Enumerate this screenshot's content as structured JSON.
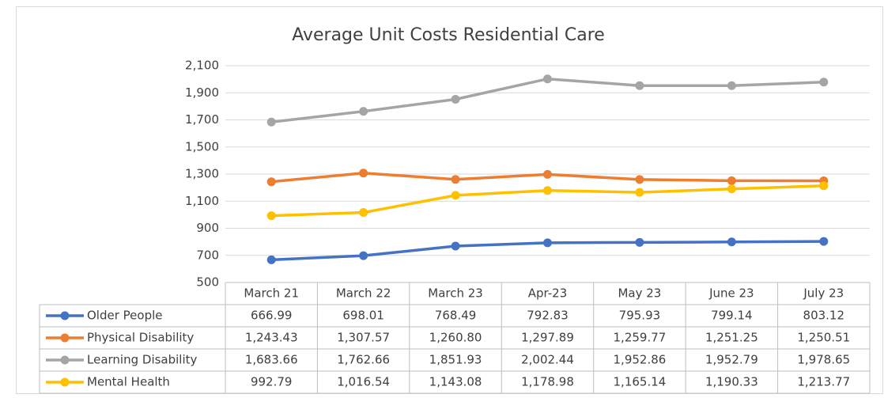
{
  "chart_data": {
    "type": "line",
    "title": "Average Unit Costs Residential Care",
    "categories": [
      "March 21",
      "March 22",
      "March 23",
      "Apr-23",
      "May 23",
      "June 23",
      "July 23"
    ],
    "series": [
      {
        "name": "Older People",
        "color": "#4472c4",
        "values": [
          666.99,
          698.01,
          768.49,
          792.83,
          795.93,
          799.14,
          803.12
        ],
        "value_labels": [
          "666.99",
          "698.01",
          "768.49",
          "792.83",
          "795.93",
          "799.14",
          "803.12"
        ]
      },
      {
        "name": "Physical Disability",
        "color": "#ed7d31",
        "values": [
          1243.43,
          1307.57,
          1260.8,
          1297.89,
          1259.77,
          1251.25,
          1250.51
        ],
        "value_labels": [
          "1,243.43",
          "1,307.57",
          "1,260.80",
          "1,297.89",
          "1,259.77",
          "1,251.25",
          "1,250.51"
        ]
      },
      {
        "name": "Learning Disability",
        "color": "#a5a5a5",
        "values": [
          1683.66,
          1762.66,
          1851.93,
          2002.44,
          1952.86,
          1952.79,
          1978.65
        ],
        "value_labels": [
          "1,683.66",
          "1,762.66",
          "1,851.93",
          "2,002.44",
          "1,952.86",
          "1,952.79",
          "1,978.65"
        ]
      },
      {
        "name": "Mental Health",
        "color": "#ffc000",
        "values": [
          992.79,
          1016.54,
          1143.08,
          1178.98,
          1165.14,
          1190.33,
          1213.77
        ],
        "value_labels": [
          "992.79",
          "1,016.54",
          "1,143.08",
          "1,178.98",
          "1,165.14",
          "1,190.33",
          "1,213.77"
        ]
      }
    ],
    "ylim": [
      500,
      2100
    ],
    "yticks": [
      500,
      700,
      900,
      {
        "value": 1100,
        "label": "1,100"
      },
      {
        "value": 1300,
        "label": "1,300"
      },
      {
        "value": 1500,
        "label": "1,500"
      },
      {
        "value": 1700,
        "label": "1,700"
      },
      {
        "value": 1900,
        "label": "1,900"
      },
      {
        "value": 2100,
        "label": "2,100"
      }
    ],
    "grid": true
  }
}
